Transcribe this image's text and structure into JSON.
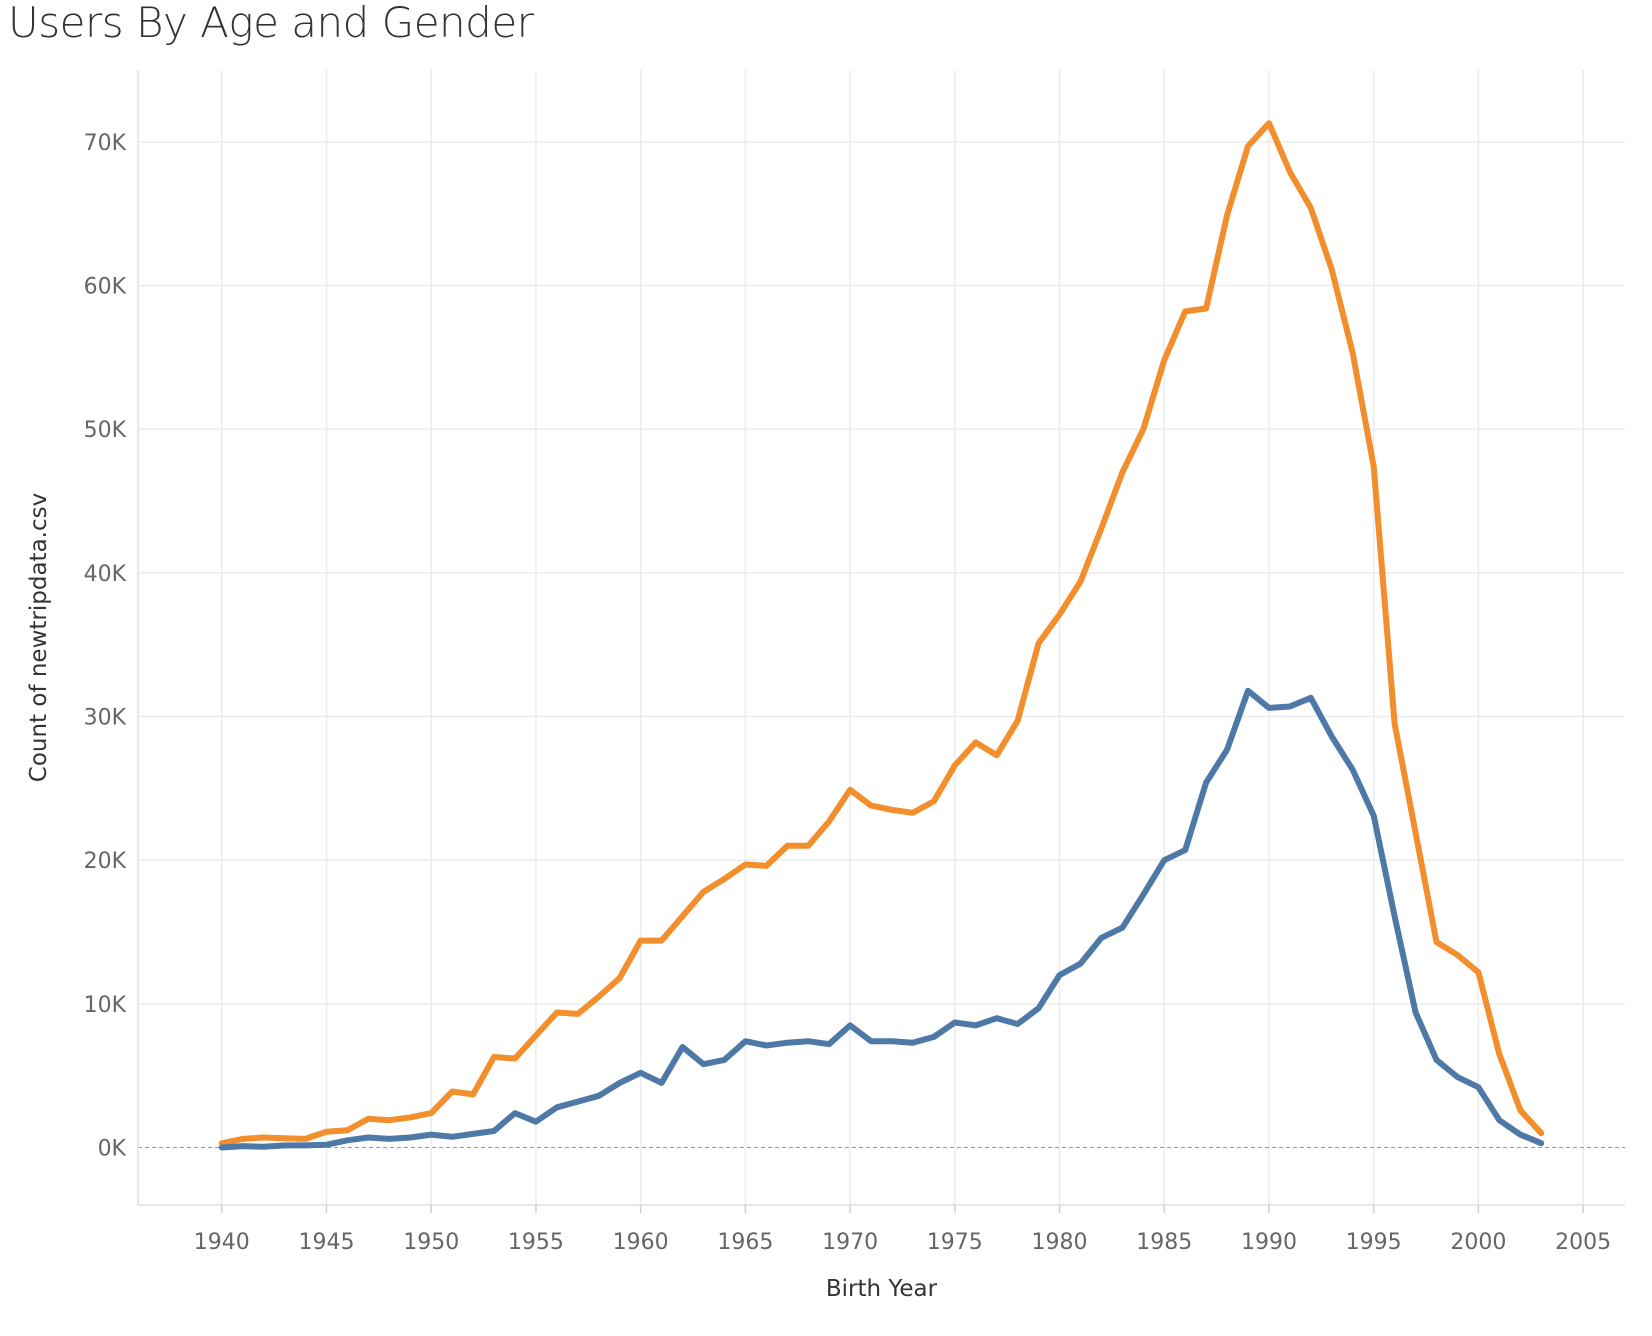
{
  "chart_data": {
    "type": "line",
    "title": "Users By Age and Gender",
    "xlabel": "Birth Year",
    "ylabel": "Count of newtripdata.csv",
    "xlim": [
      1936,
      2007
    ],
    "ylim": [
      -4000,
      75000
    ],
    "x_ticks": [
      1940,
      1945,
      1950,
      1955,
      1960,
      1965,
      1970,
      1975,
      1980,
      1985,
      1990,
      1995,
      2000,
      2005
    ],
    "x_tick_labels": [
      "1940",
      "1945",
      "1950",
      "1955",
      "1960",
      "1965",
      "1970",
      "1975",
      "1980",
      "1985",
      "1990",
      "1995",
      "2000",
      "2005"
    ],
    "y_ticks": [
      0,
      10000,
      20000,
      30000,
      40000,
      50000,
      60000,
      70000
    ],
    "y_tick_labels": [
      "0K",
      "10K",
      "20K",
      "30K",
      "40K",
      "50K",
      "60K",
      "70K"
    ],
    "grid": true,
    "zero_line": "dashed",
    "legend": "none",
    "x": [
      1940,
      1941,
      1942,
      1943,
      1944,
      1945,
      1946,
      1947,
      1948,
      1949,
      1950,
      1951,
      1952,
      1953,
      1954,
      1955,
      1956,
      1957,
      1958,
      1959,
      1960,
      1961,
      1962,
      1963,
      1964,
      1965,
      1966,
      1967,
      1968,
      1969,
      1970,
      1971,
      1972,
      1973,
      1974,
      1975,
      1976,
      1977,
      1978,
      1979,
      1980,
      1981,
      1982,
      1983,
      1984,
      1985,
      1986,
      1987,
      1988,
      1989,
      1990,
      1991,
      1992,
      1993,
      1994,
      1995,
      1996,
      1997,
      1998,
      1999,
      2000,
      2001,
      2002,
      2003
    ],
    "series": [
      {
        "color": "#f28e2b",
        "values": [
          300,
          600,
          700,
          650,
          600,
          1100,
          1200,
          2000,
          1900,
          2100,
          2400,
          3900,
          3700,
          6300,
          6200,
          7800,
          9400,
          9300,
          10500,
          11800,
          14400,
          14400,
          16100,
          17800,
          18700,
          19700,
          19600,
          21000,
          21000,
          22700,
          24900,
          23800,
          23500,
          23300,
          24100,
          26600,
          28200,
          27300,
          29700,
          35100,
          37100,
          39400,
          43100,
          47000,
          50000,
          54800,
          58200,
          58400,
          64900,
          69700,
          71300,
          67900,
          65400,
          61100,
          55300,
          47400,
          29500,
          21900,
          14300,
          13400,
          12200,
          6500,
          2600,
          1000
        ]
      },
      {
        "color": "#4e79a7",
        "values": [
          0,
          100,
          50,
          150,
          150,
          200,
          500,
          700,
          600,
          700,
          900,
          750,
          950,
          1150,
          2400,
          1800,
          2800,
          3200,
          3600,
          4500,
          5200,
          4500,
          7000,
          5800,
          6100,
          7400,
          7100,
          7300,
          7400,
          7200,
          8500,
          7400,
          7400,
          7300,
          7700,
          8700,
          8500,
          9000,
          8600,
          9700,
          12000,
          12800,
          14600,
          15300,
          17600,
          20000,
          20700,
          25400,
          27700,
          31800,
          30600,
          30700,
          31300,
          28600,
          26300,
          23100,
          16100,
          9400,
          6100,
          4900,
          4200,
          1900,
          900,
          300
        ]
      }
    ]
  }
}
